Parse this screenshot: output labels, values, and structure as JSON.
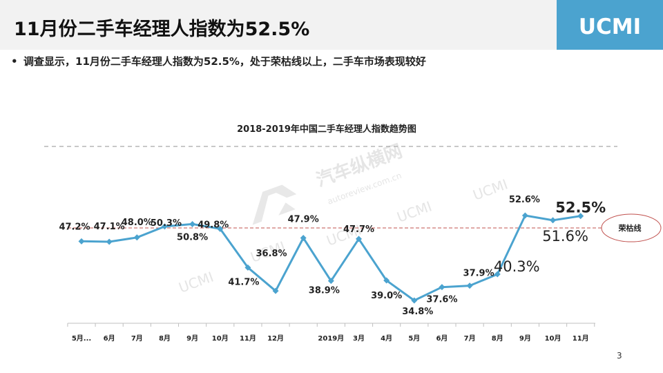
{
  "header": {
    "title": "11月份二手车经理人指数为52.5%",
    "logo_text": "UCMI"
  },
  "bullet": {
    "text": "调查显示，11月份二手车经理人指数为52.5%，处于荣枯线以上，二手车市场表现较好"
  },
  "watermarks": [
    "汽车纵横网",
    "autoreview.com.cn",
    "UCMI"
  ],
  "page_number": "3",
  "colors": {
    "line": "#4ba3cf",
    "reference_line": "#c0504d",
    "logo_bg": "#4ba3cf"
  },
  "chart_data": {
    "type": "line",
    "title": "2018-2019年中国二手车经理人指数趋势图",
    "categories": [
      "5月",
      "6月",
      "7月",
      "8月",
      "9月",
      "10月",
      "11月",
      "12月",
      "",
      "2019月",
      "3月",
      "4月",
      "5月",
      "6月",
      "7月",
      "8月",
      "9月",
      "10月",
      "11月"
    ],
    "tick_labels": [
      "5月...",
      "6月",
      "7月",
      "8月",
      "9月",
      "10月",
      "11月",
      "12月",
      "",
      "2019月",
      "3月",
      "4月",
      "5月",
      "6月",
      "7月",
      "8月",
      "9月",
      "10月",
      "11月"
    ],
    "values": [
      47.2,
      47.1,
      48.0,
      50.3,
      50.8,
      49.8,
      41.7,
      36.8,
      47.9,
      38.9,
      47.7,
      39.0,
      34.8,
      37.6,
      37.9,
      40.3,
      52.6,
      51.6,
      52.5
    ],
    "data_labels": [
      "47.2%",
      "47.1%",
      "48.0%",
      "50.3%",
      "50.8%",
      "49.8%",
      "41.7%",
      "36.8%",
      "47.9%",
      "38.9%",
      "47.7%",
      "39.0%",
      "34.8%",
      "37.6%",
      "37.9%",
      "40.3%",
      "52.6%",
      "51.6%",
      "52.5%"
    ],
    "reference_line": {
      "value": 50,
      "label": "荣枯线"
    },
    "ylim": [
      30,
      56
    ],
    "xlabel": "",
    "ylabel": "",
    "grid": false,
    "legend": "none"
  }
}
